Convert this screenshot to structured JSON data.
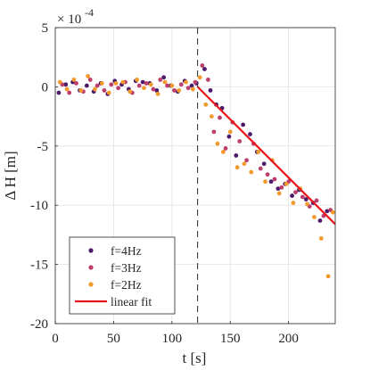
{
  "chart_data": {
    "type": "scatter",
    "title": "",
    "xlabel": "t [s]",
    "ylabel": "Δ H [m]",
    "xlim": [
      0,
      240
    ],
    "ylim": [
      -20,
      5
    ],
    "x_ticks": [
      0,
      50,
      100,
      150,
      200
    ],
    "y_ticks": [
      5,
      0,
      -5,
      -10,
      -15,
      -20
    ],
    "y_exponent_base": "× 10",
    "y_exponent_power": "-4",
    "grid": true,
    "legend_position": "lower-left",
    "vline_x": 122,
    "colors": {
      "f4": "#4b1a6b",
      "f3": "#bb3e6d",
      "f2": "#f29a2c",
      "fit": "#e8141b"
    },
    "series": [
      {
        "name": "f=4Hz",
        "color": "#4b1a6b",
        "x": [
          3,
          9,
          15,
          21,
          27,
          33,
          39,
          45,
          51,
          57,
          63,
          69,
          75,
          81,
          87,
          93,
          99,
          105,
          111,
          117,
          121,
          128,
          133,
          138,
          143,
          149,
          155,
          161,
          167,
          173,
          179,
          185,
          191,
          197,
          203,
          209,
          215,
          221,
          227,
          233
        ],
        "y": [
          -0.5,
          0.2,
          0.4,
          -0.3,
          0.1,
          -0.4,
          0.3,
          -0.6,
          0.5,
          0.2,
          -0.2,
          0.5,
          0.4,
          0.3,
          -0.3,
          0.8,
          0.1,
          -0.4,
          0.5,
          0.1,
          0.3,
          1.5,
          -0.3,
          -1.5,
          -1.8,
          -4.2,
          -5.8,
          -3.2,
          -4.0,
          -5.5,
          -6.5,
          -8.0,
          -8.6,
          -8.2,
          -9.2,
          -8.7,
          -9.5,
          -9.8,
          -11.3,
          -10.5
        ]
      },
      {
        "name": "f=3Hz",
        "color": "#bb3e6d",
        "x": [
          6,
          12,
          18,
          24,
          30,
          36,
          42,
          48,
          54,
          60,
          66,
          72,
          78,
          84,
          90,
          96,
          102,
          108,
          114,
          120,
          126,
          131,
          136,
          141,
          146,
          152,
          158,
          164,
          170,
          176,
          182,
          188,
          194,
          200,
          206,
          212,
          218,
          224,
          230,
          236
        ],
        "y": [
          0.2,
          -0.5,
          0.3,
          -0.4,
          0.6,
          0.1,
          -0.3,
          0.2,
          -0.1,
          0.4,
          -0.5,
          0.1,
          0.3,
          -0.2,
          0.6,
          0.1,
          -0.3,
          0.2,
          -0.1,
          0.4,
          1.8,
          0.6,
          -3.8,
          -2.6,
          -5.2,
          -3.0,
          -4.6,
          -6.2,
          -4.8,
          -6.9,
          -7.4,
          -7.8,
          -8.5,
          -8.0,
          -8.9,
          -9.3,
          -10.1,
          -9.6,
          -10.9,
          -10.4
        ]
      },
      {
        "name": "f=2Hz",
        "color": "#f29a2c",
        "x": [
          4,
          10,
          16,
          22,
          28,
          34,
          40,
          46,
          52,
          58,
          64,
          70,
          76,
          82,
          88,
          94,
          100,
          106,
          112,
          118,
          124,
          129,
          134,
          139,
          144,
          150,
          156,
          162,
          168,
          174,
          180,
          186,
          192,
          198,
          204,
          210,
          216,
          222,
          228,
          234,
          238
        ],
        "y": [
          0.4,
          -0.2,
          0.6,
          -0.3,
          0.9,
          -0.2,
          0.3,
          -0.5,
          0.3,
          0.4,
          -0.4,
          0.6,
          -0.1,
          0.2,
          -0.6,
          0.4,
          0.1,
          -0.3,
          0.4,
          -0.2,
          0.8,
          -1.5,
          -2.5,
          -4.8,
          -5.5,
          -3.8,
          -6.8,
          -6.5,
          -7.2,
          -5.5,
          -8.0,
          -6.2,
          -9.0,
          -8.2,
          -9.8,
          -8.6,
          -9.9,
          -11.0,
          -12.8,
          -16.0,
          -10.6
        ]
      }
    ],
    "linear_fit": {
      "name": "linear fit",
      "x": [
        122,
        240
      ],
      "y": [
        0,
        -11.6
      ]
    }
  }
}
